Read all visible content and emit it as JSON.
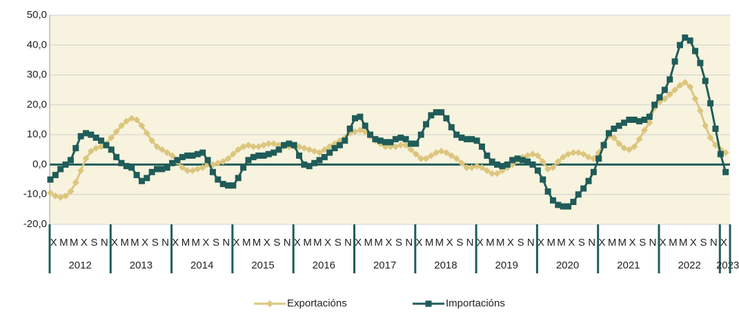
{
  "chart_data": {
    "type": "line",
    "categories": [
      "X",
      null,
      "M",
      null,
      "M",
      null,
      "X",
      null,
      "S",
      null,
      "N",
      null,
      "X",
      null,
      "M",
      null,
      "M",
      null,
      "X",
      null,
      "S",
      null,
      "N",
      null,
      "X",
      null,
      "M",
      null,
      "M",
      null,
      "X",
      null,
      "S",
      null,
      "N",
      null,
      "X",
      null,
      "M",
      null,
      "M",
      null,
      "X",
      null,
      "S",
      null,
      "N",
      null,
      "X",
      null,
      "M",
      null,
      "M",
      null,
      "X",
      null,
      "S",
      null,
      "N",
      null,
      "X",
      null,
      "M",
      null,
      "M",
      null,
      "X",
      null,
      "S",
      null,
      "N",
      null,
      "X",
      null,
      "M",
      null,
      "M",
      null,
      "X",
      null,
      "S",
      null,
      "N",
      null,
      "X",
      null,
      "M",
      null,
      "M",
      null,
      "X",
      null,
      "S",
      null,
      "N",
      null,
      "X",
      null,
      "M",
      null,
      "M",
      null,
      "X",
      null,
      "S",
      null,
      "N",
      null,
      "X",
      null,
      "M",
      null,
      "M",
      null,
      "X",
      null,
      "S",
      null,
      "N",
      null,
      "X",
      null,
      "M",
      null,
      "M",
      null,
      "X",
      null,
      "S",
      null,
      "N",
      null,
      "X",
      null
    ],
    "year_labels": [
      "2012",
      "2013",
      "2014",
      "2015",
      "2016",
      "2017",
      "2018",
      "2019",
      "2020",
      "2021",
      "2022",
      "2023"
    ],
    "series": [
      {
        "name": "Exportacións",
        "color": "#dcc67e",
        "marker": "diamond",
        "values": [
          -9.5,
          -10.5,
          -11,
          -10.5,
          -9,
          -6,
          -2,
          2,
          4.5,
          5.5,
          6,
          7,
          9,
          11,
          13,
          14.5,
          15.5,
          15,
          13,
          10.5,
          8,
          6,
          5,
          4,
          3,
          1,
          -1,
          -2,
          -2,
          -1.5,
          -1,
          0,
          0,
          0.5,
          1,
          2,
          3.5,
          5,
          6,
          6.5,
          6,
          6,
          6.5,
          7,
          7,
          6.5,
          6,
          6,
          6,
          6,
          5.5,
          5,
          4.5,
          4,
          5,
          6,
          7,
          8,
          9,
          10.5,
          11,
          11.5,
          11,
          9.5,
          8,
          7,
          6,
          6,
          6,
          6.5,
          6.5,
          5,
          3.5,
          2,
          2,
          3,
          4,
          4.5,
          4,
          3,
          2,
          0.5,
          -1,
          -1,
          -0.5,
          -1,
          -2,
          -3,
          -3,
          -2,
          -1,
          0,
          1.5,
          2.5,
          3,
          3.5,
          3,
          1,
          -1.5,
          -1,
          1,
          2.5,
          3.5,
          4,
          4,
          3.5,
          2.5,
          2,
          4,
          7,
          9.5,
          9,
          7,
          5.5,
          5,
          6,
          8.5,
          11.5,
          14,
          19,
          21,
          22,
          23.5,
          25,
          26.5,
          27.5,
          26,
          22,
          18,
          13,
          9,
          6.5,
          5,
          4
        ]
      },
      {
        "name": "Importacións",
        "color": "#1f5c59",
        "marker": "square",
        "values": [
          -5,
          -3.5,
          -1.5,
          0,
          1.5,
          5.5,
          9.5,
          10.5,
          10,
          9,
          8,
          6.5,
          5,
          2.5,
          0.5,
          -0.5,
          -1,
          -3.5,
          -5.5,
          -4.5,
          -2.5,
          -1.5,
          -1.5,
          -1,
          0.5,
          1.5,
          2.5,
          3,
          3,
          3.5,
          4,
          1.5,
          -2.5,
          -5,
          -6.5,
          -7,
          -7,
          -4.5,
          -1,
          1.5,
          2.5,
          3,
          3,
          3.5,
          4,
          5,
          6.5,
          7,
          6.5,
          3,
          0,
          -0.5,
          0.5,
          1.5,
          2.5,
          4,
          5.5,
          6.5,
          8,
          12,
          15.5,
          16,
          13,
          10,
          8.5,
          8,
          7.5,
          7.5,
          8.5,
          9,
          8.5,
          7,
          7,
          10,
          13.5,
          16.5,
          17.5,
          17.5,
          15.5,
          12.5,
          10,
          9,
          8.5,
          8.5,
          8,
          6,
          3,
          1,
          0,
          -0.5,
          0,
          1.5,
          2,
          1.5,
          1,
          0,
          -2,
          -5,
          -9,
          -12,
          -13.5,
          -14,
          -14,
          -12.5,
          -10,
          -8,
          -5.5,
          -2.5,
          2,
          6.5,
          10.5,
          12,
          13,
          14,
          15,
          15,
          14.5,
          15,
          16,
          20,
          22.5,
          25,
          28.5,
          34.5,
          40,
          42.5,
          41.5,
          38,
          34,
          28,
          20.5,
          12,
          3.5,
          -2.5
        ]
      }
    ],
    "ylim": [
      -20,
      50
    ],
    "yticks": [
      {
        "value": -20,
        "label": "-20,0"
      },
      {
        "value": -10,
        "label": "-10,0"
      },
      {
        "value": 0,
        "label": "0,0"
      },
      {
        "value": 10,
        "label": "10,0"
      },
      {
        "value": 20,
        "label": "20,0"
      },
      {
        "value": 30,
        "label": "30,0"
      },
      {
        "value": 40,
        "label": "40,0"
      },
      {
        "value": 50,
        "label": "50,0"
      }
    ],
    "grid": true
  }
}
